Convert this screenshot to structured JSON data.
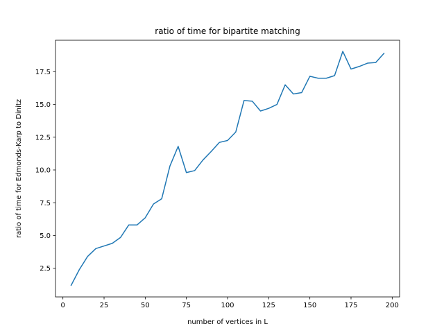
{
  "chart_data": {
    "type": "line",
    "title": "ratio of time for bipartite matching",
    "xlabel": "number of vertices in L",
    "ylabel": "ratio of time for Edmonds-Karp to Dinitz",
    "xlim": [
      -4.5,
      204.5
    ],
    "ylim": [
      0.31,
      19.9
    ],
    "xticks": [
      0,
      25,
      50,
      75,
      100,
      125,
      150,
      175,
      200
    ],
    "yticks": [
      2.5,
      5.0,
      7.5,
      10.0,
      12.5,
      15.0,
      17.5
    ],
    "xtick_labels": [
      "0",
      "25",
      "50",
      "75",
      "100",
      "125",
      "150",
      "175",
      "200"
    ],
    "ytick_labels": [
      "2.5",
      "5.0",
      "7.5",
      "10.0",
      "12.5",
      "15.0",
      "17.5"
    ],
    "grid": false,
    "series": [
      {
        "color": "#1f77b4",
        "x": [
          5,
          10,
          15,
          20,
          25,
          30,
          35,
          40,
          45,
          50,
          55,
          60,
          65,
          70,
          75,
          80,
          85,
          90,
          95,
          100,
          105,
          110,
          115,
          120,
          125,
          130,
          135,
          140,
          145,
          150,
          155,
          160,
          165,
          170,
          175,
          180,
          185,
          190,
          195
        ],
        "y": [
          1.2,
          2.4,
          3.4,
          4.0,
          4.2,
          4.4,
          4.85,
          5.8,
          5.8,
          6.35,
          7.4,
          7.8,
          10.3,
          11.8,
          9.8,
          9.95,
          10.75,
          11.4,
          12.1,
          12.25,
          12.9,
          15.3,
          15.25,
          14.5,
          14.7,
          15.0,
          16.5,
          15.8,
          15.9,
          17.15,
          17.0,
          17.0,
          17.2,
          19.05,
          17.7,
          17.9,
          18.15,
          18.2,
          18.9
        ]
      }
    ]
  }
}
